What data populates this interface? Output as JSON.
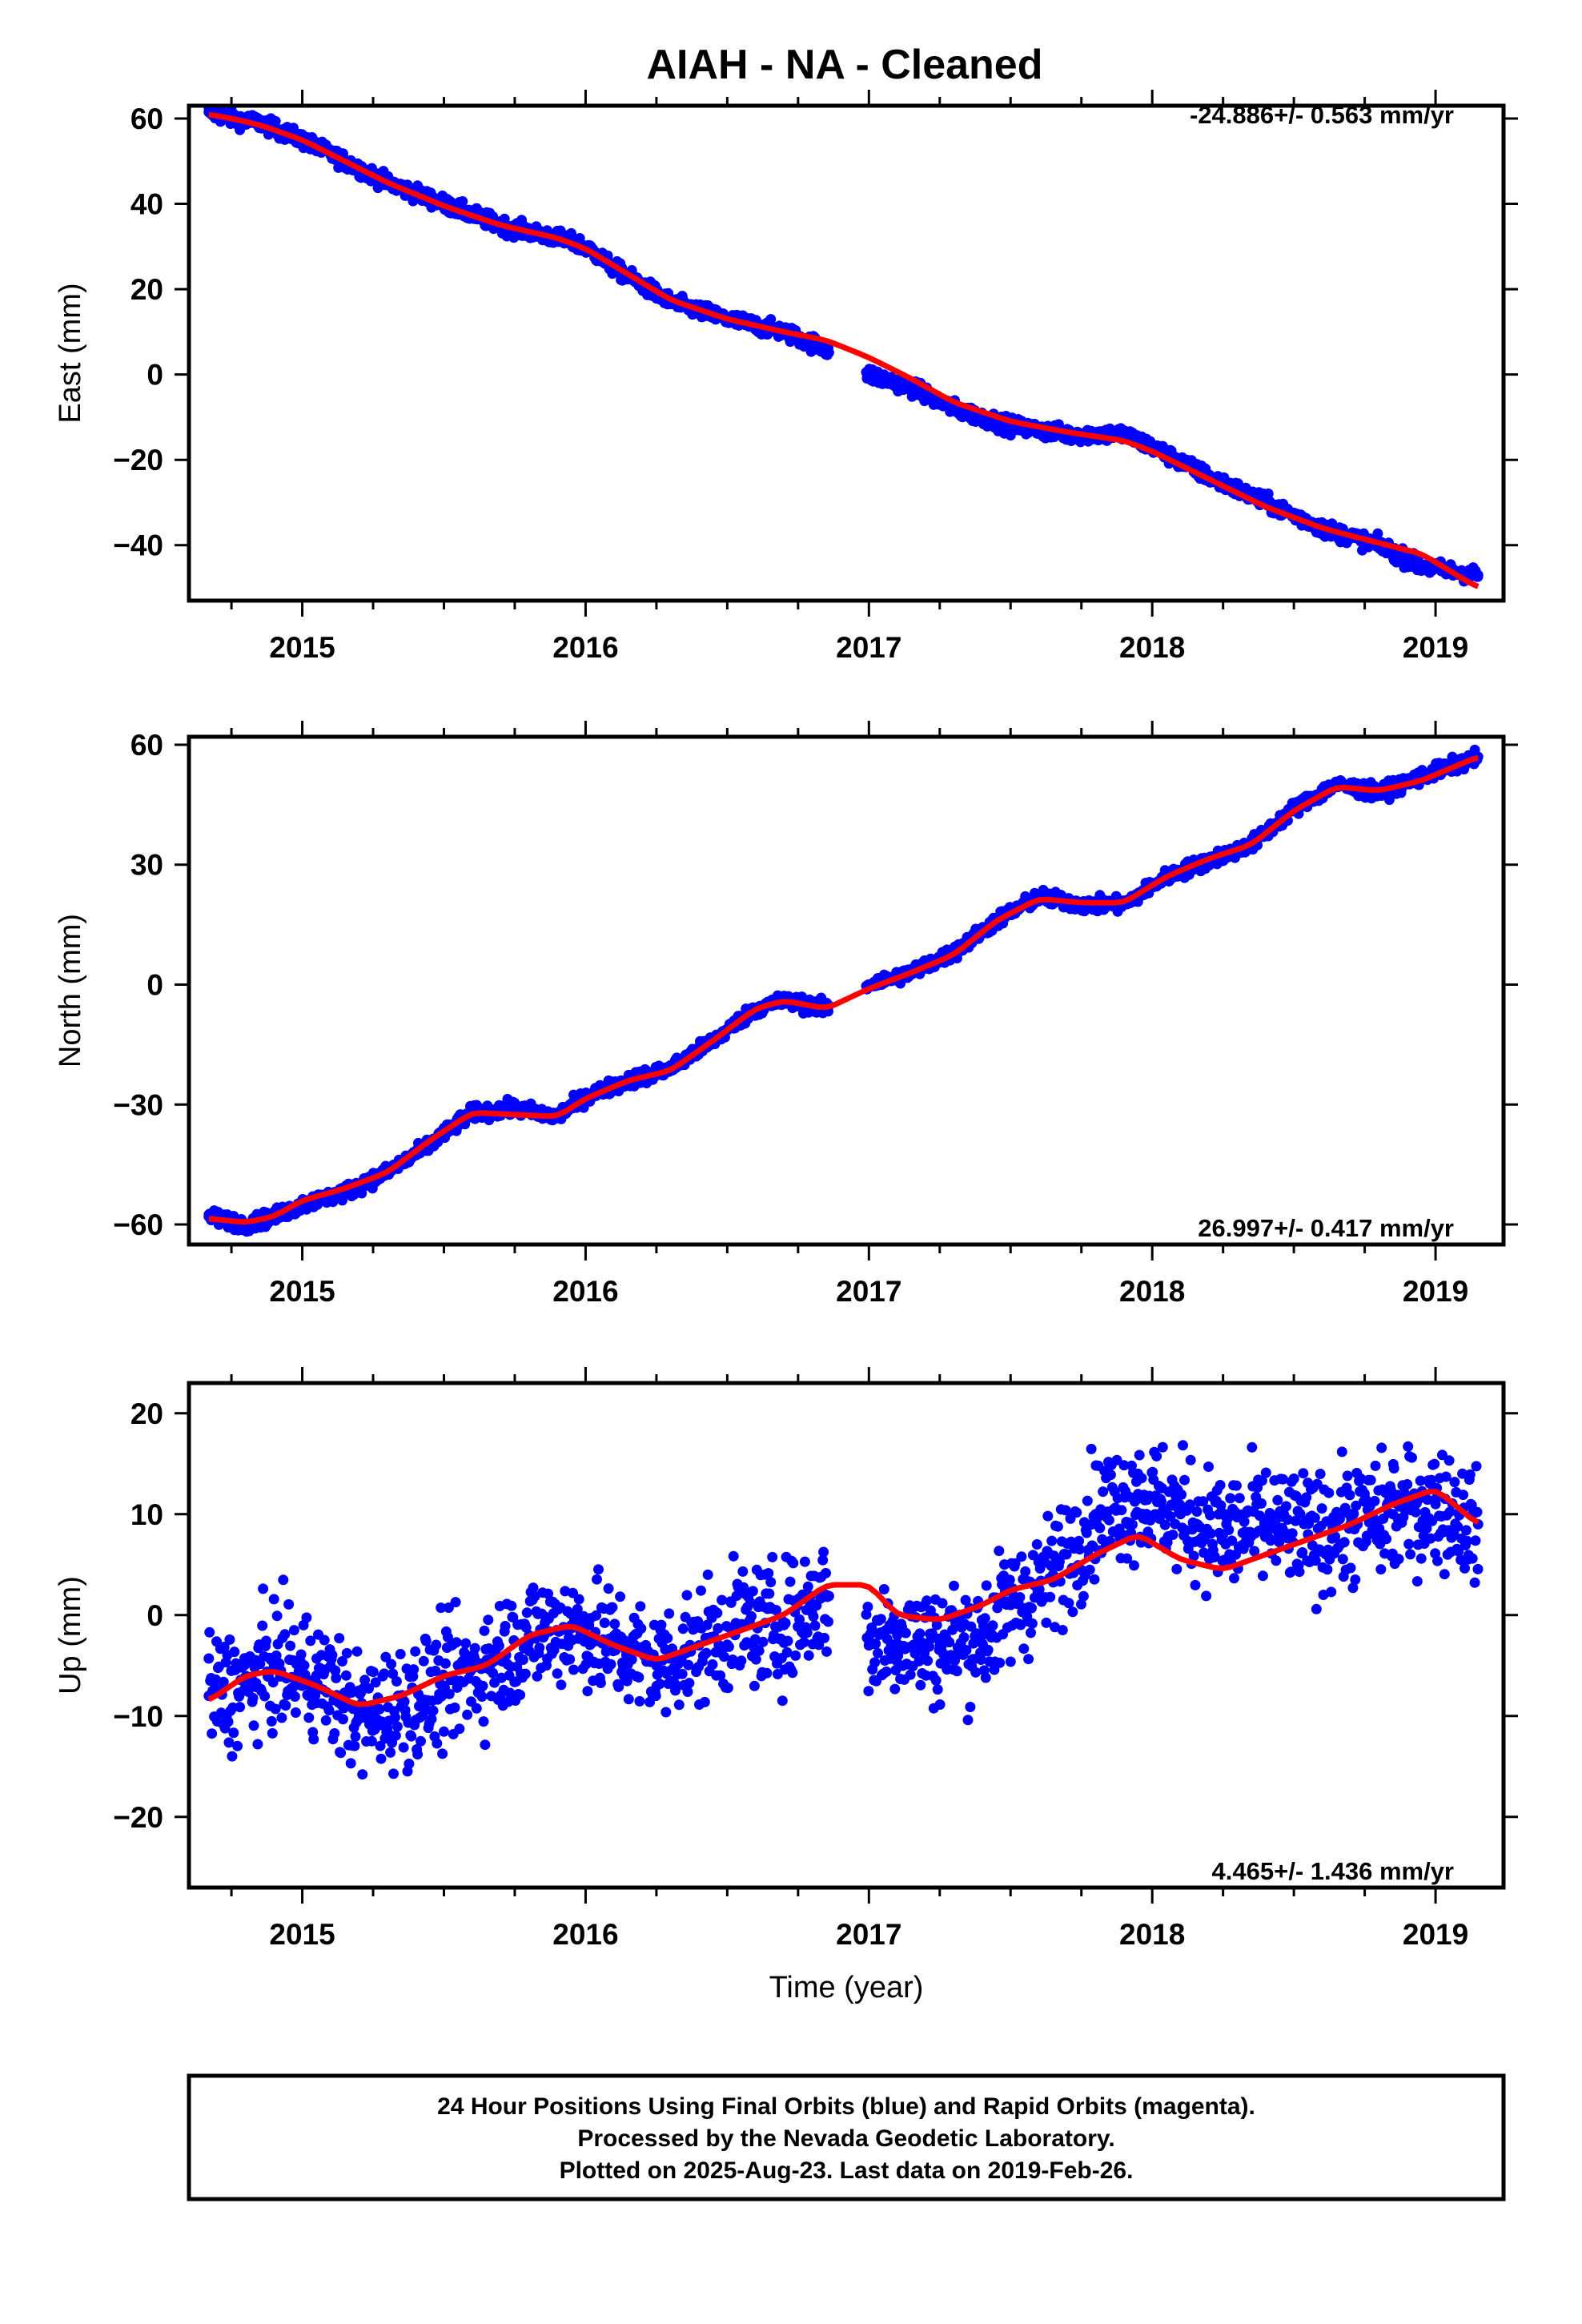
{
  "title": "AIAH  - NA - Cleaned",
  "xlabel": "Time (year)",
  "footer": {
    "line1": "24 Hour Positions Using Final Orbits (blue) and Rapid Orbits (magenta).",
    "line2": "Processed by the Nevada Geodetic Laboratory.",
    "line3": "Plotted on 2025-Aug-23. Last data on 2019-Feb-26."
  },
  "colors": {
    "final_orbits": "#0000ff",
    "rapid_orbits": "#ff00ff",
    "model_fit": "#ff0000",
    "frame": "#000000"
  },
  "chart_data": [
    {
      "type": "scatter",
      "name": "east",
      "ylabel": "East (mm)",
      "rate_label": "-24.886+/- 0.563 mm/yr",
      "rate_position": "top-right",
      "xlim": [
        2014.6,
        2019.24
      ],
      "ylim": [
        -53,
        63
      ],
      "xticks": [
        2015,
        2016,
        2017,
        2018,
        2019
      ],
      "yticks": [
        60,
        40,
        20,
        0,
        -20,
        -40
      ],
      "ytick_labels": [
        "60",
        "40",
        "20",
        "0",
        "−20",
        "−40"
      ],
      "series": [
        {
          "name": "Final Orbits",
          "kind": "points",
          "x": [
            2014.67,
            2014.75,
            2014.85,
            2015.0,
            2015.15,
            2015.3,
            2015.5,
            2015.7,
            2015.9,
            2016.0,
            2016.1,
            2016.3,
            2016.5,
            2016.7,
            2016.85,
            2017.0,
            2017.15,
            2017.3,
            2017.5,
            2017.7,
            2017.9,
            2018.0,
            2018.2,
            2018.4,
            2018.6,
            2018.8,
            2018.95,
            2019.15
          ],
          "y": [
            61.5,
            60,
            59,
            55,
            50,
            45,
            40,
            35,
            32,
            30,
            25,
            17,
            13,
            10,
            6,
            0,
            -3,
            -8,
            -12,
            -14,
            -14,
            -17,
            -24,
            -30,
            -36,
            -40,
            -45,
            -47
          ]
        },
        {
          "name": "Model",
          "kind": "line",
          "x": [
            2014.67,
            2014.75,
            2014.85,
            2015.0,
            2015.15,
            2015.3,
            2015.5,
            2015.7,
            2015.9,
            2016.0,
            2016.1,
            2016.3,
            2016.5,
            2016.7,
            2016.85,
            2017.0,
            2017.15,
            2017.3,
            2017.5,
            2017.7,
            2017.9,
            2018.0,
            2018.2,
            2018.4,
            2018.6,
            2018.8,
            2018.95,
            2019.15
          ],
          "y": [
            61,
            60,
            58.5,
            55,
            50,
            45,
            39.5,
            35,
            32,
            29.5,
            25.5,
            17.5,
            13,
            10,
            8,
            4,
            -1,
            -6.5,
            -11,
            -13.5,
            -15.5,
            -18,
            -24.5,
            -31,
            -36,
            -39.5,
            -42,
            -50
          ]
        }
      ]
    },
    {
      "type": "scatter",
      "name": "north",
      "ylabel": "North (mm)",
      "rate_label": "26.997+/- 0.417 mm/yr",
      "rate_position": "bottom-right",
      "xlim": [
        2014.6,
        2019.24
      ],
      "ylim": [
        -65,
        62
      ],
      "xticks": [
        2015,
        2016,
        2017,
        2018,
        2019
      ],
      "yticks": [
        60,
        30,
        0,
        -30,
        -60
      ],
      "ytick_labels": [
        "60",
        "30",
        "0",
        "−30",
        "−60"
      ],
      "series": [
        {
          "name": "Final Orbits",
          "kind": "points",
          "x": [
            2014.67,
            2014.8,
            2014.9,
            2015.0,
            2015.15,
            2015.3,
            2015.45,
            2015.6,
            2015.75,
            2015.9,
            2016.0,
            2016.15,
            2016.3,
            2016.45,
            2016.6,
            2016.7,
            2016.85,
            2017.0,
            2017.15,
            2017.3,
            2017.45,
            2017.6,
            2017.75,
            2017.9,
            2018.05,
            2018.2,
            2018.35,
            2018.5,
            2018.65,
            2018.8,
            2018.95,
            2019.15
          ],
          "y": [
            -58,
            -60,
            -58,
            -55,
            -52,
            -47,
            -40,
            -32,
            -31,
            -33,
            -28,
            -24,
            -21,
            -14,
            -6,
            -4,
            -6,
            0,
            3,
            8,
            16,
            22,
            20,
            20,
            27,
            31,
            35,
            44,
            50,
            48,
            52,
            57
          ]
        },
        {
          "name": "Model",
          "kind": "line",
          "x": [
            2014.67,
            2014.8,
            2014.9,
            2015.0,
            2015.15,
            2015.3,
            2015.45,
            2015.6,
            2015.75,
            2015.9,
            2016.0,
            2016.15,
            2016.3,
            2016.45,
            2016.6,
            2016.7,
            2016.85,
            2017.0,
            2017.15,
            2017.3,
            2017.45,
            2017.6,
            2017.75,
            2017.9,
            2018.05,
            2018.2,
            2018.35,
            2018.5,
            2018.65,
            2018.8,
            2018.95,
            2019.15
          ],
          "y": [
            -58.5,
            -59.5,
            -58,
            -54,
            -51,
            -47,
            -39,
            -32,
            -32.5,
            -33,
            -28.5,
            -24,
            -21.5,
            -14,
            -6,
            -4,
            -6,
            -1,
            3,
            7.5,
            16,
            21.5,
            20.5,
            20.5,
            27,
            31.5,
            35,
            43.5,
            49.5,
            48.5,
            51,
            57
          ]
        }
      ]
    },
    {
      "type": "scatter",
      "name": "up",
      "ylabel": "Up (mm)",
      "rate_label": "4.465+/- 1.436 mm/yr",
      "rate_position": "bottom-right",
      "xlim": [
        2014.6,
        2019.24
      ],
      "ylim": [
        -27,
        23
      ],
      "xticks": [
        2015,
        2016,
        2017,
        2018,
        2019
      ],
      "yticks": [
        20,
        10,
        0,
        -10,
        -20
      ],
      "ytick_labels": [
        "20",
        "10",
        "0",
        "−10",
        "−20"
      ],
      "series": [
        {
          "name": "Final Orbits",
          "kind": "points",
          "x": [
            2014.67,
            2014.8,
            2014.9,
            2015.05,
            2015.2,
            2015.35,
            2015.5,
            2015.65,
            2015.8,
            2015.95,
            2016.1,
            2016.25,
            2016.4,
            2016.55,
            2016.7,
            2016.85,
            2017.0,
            2017.1,
            2017.25,
            2017.4,
            2017.5,
            2017.65,
            2017.8,
            2017.95,
            2018.1,
            2018.25,
            2018.4,
            2018.55,
            2018.7,
            2018.85,
            2019.0,
            2019.15
          ],
          "y": [
            -8,
            -7,
            -5,
            -6,
            -10,
            -9,
            -7,
            -5,
            -2,
            -1,
            -3,
            -5,
            -3,
            -1,
            -1,
            2,
            -3,
            -2,
            -3,
            -2,
            1,
            4,
            10,
            12,
            10,
            8,
            9,
            8,
            9,
            10,
            11,
            9
          ]
        },
        {
          "name": "Model",
          "kind": "line",
          "x": [
            2014.67,
            2014.8,
            2014.9,
            2015.05,
            2015.2,
            2015.35,
            2015.5,
            2015.65,
            2015.8,
            2015.95,
            2016.1,
            2016.25,
            2016.4,
            2016.55,
            2016.7,
            2016.85,
            2017.0,
            2017.1,
            2017.25,
            2017.4,
            2017.5,
            2017.65,
            2017.8,
            2017.95,
            2018.1,
            2018.25,
            2018.4,
            2018.55,
            2018.7,
            2018.85,
            2019.0,
            2019.15
          ],
          "y": [
            -8.5,
            -6,
            -5.5,
            -7,
            -9,
            -8,
            -6,
            -5,
            -2,
            -1,
            -3,
            -4.5,
            -3,
            -1.5,
            0,
            3,
            3,
            0,
            -0.5,
            1,
            2.5,
            3.5,
            6,
            8,
            5.5,
            4.5,
            6,
            7.5,
            9,
            11,
            12.5,
            9
          ]
        }
      ]
    }
  ]
}
